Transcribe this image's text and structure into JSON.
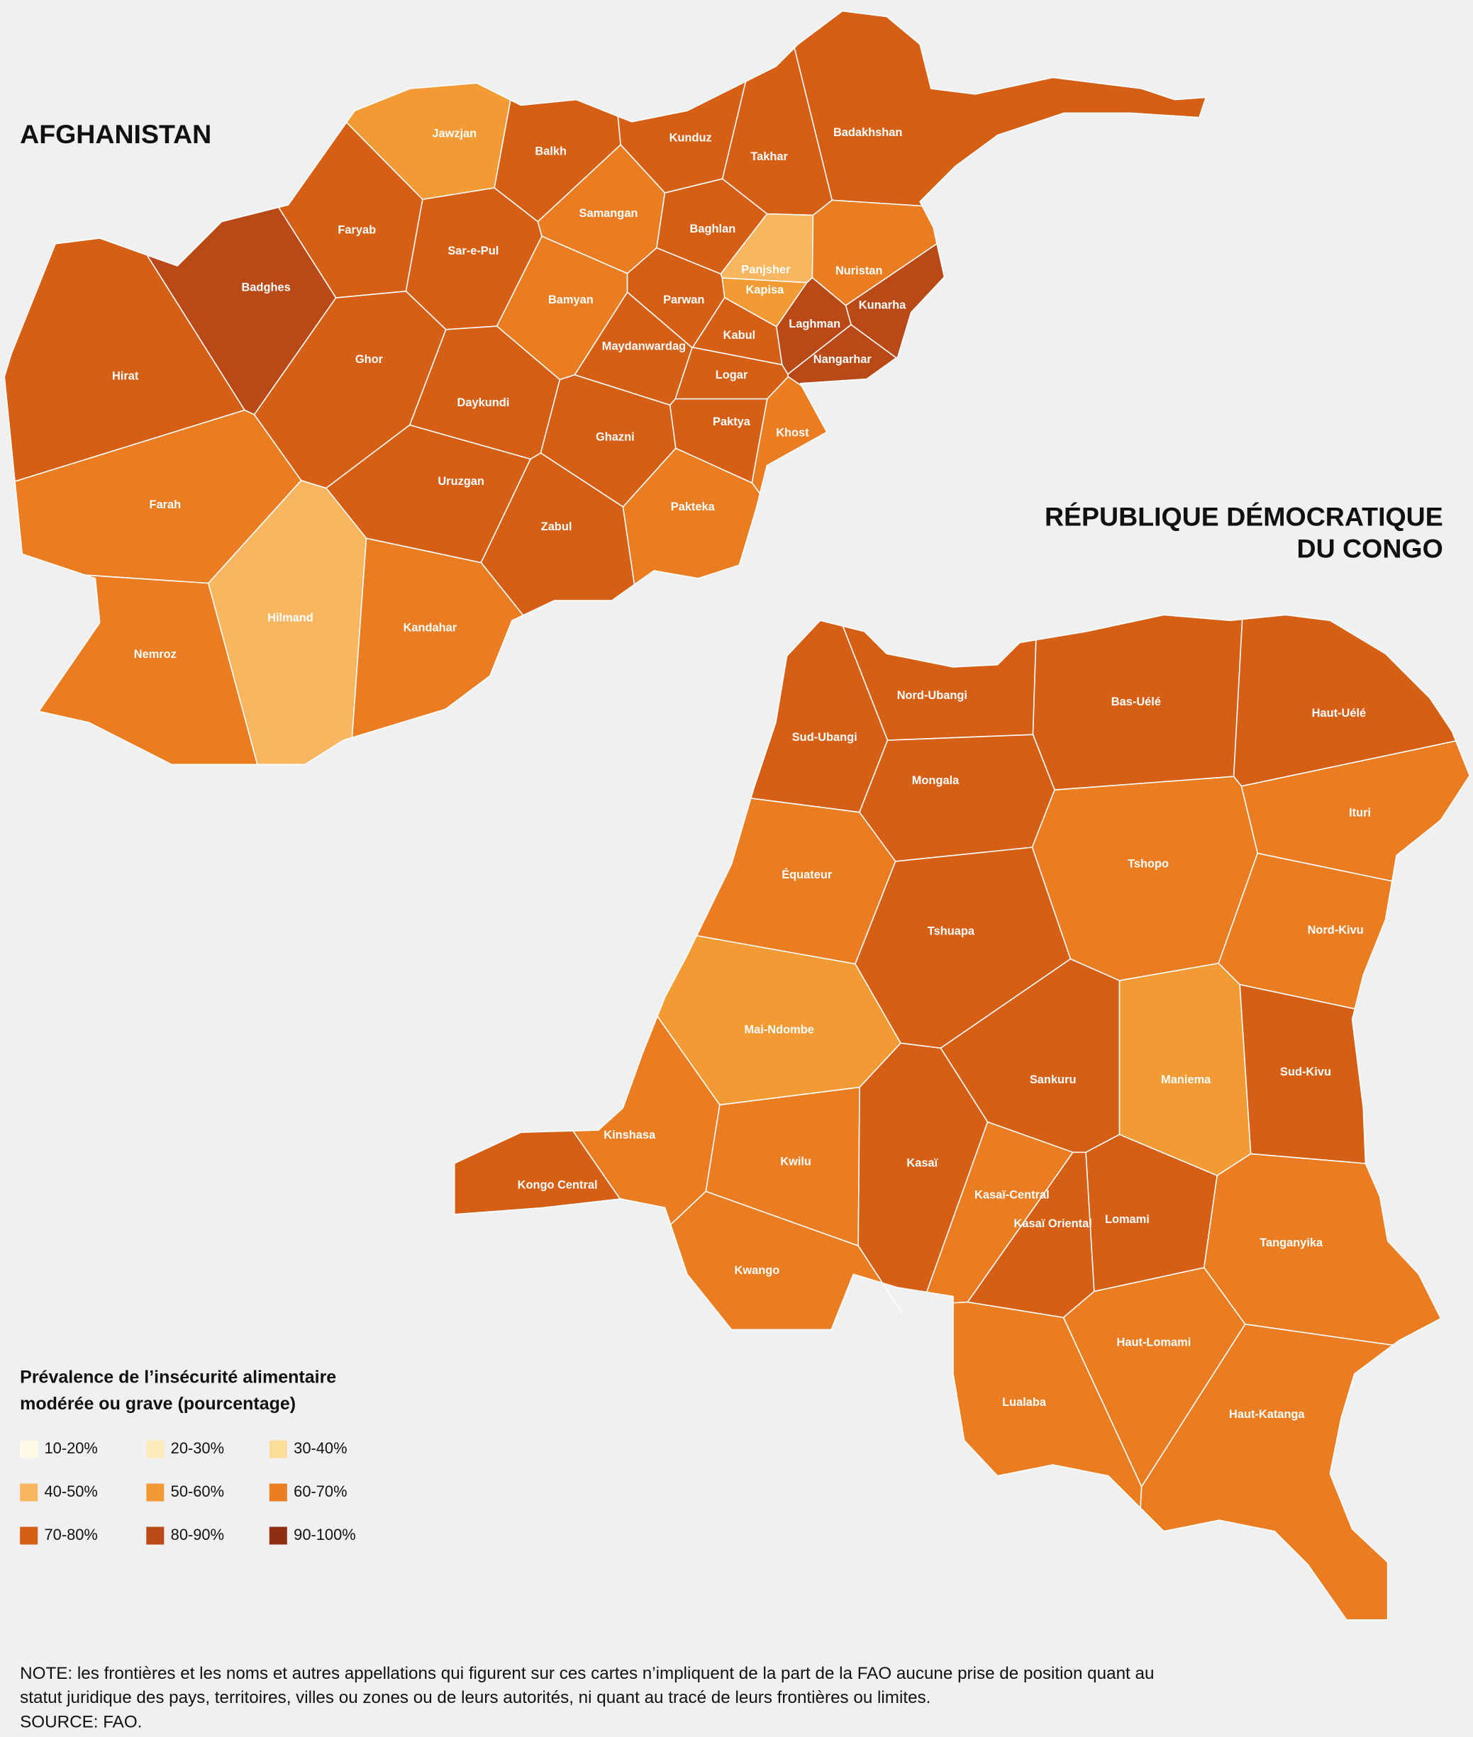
{
  "maps": [
    {
      "title_lines": [
        "AFGHANISTAN"
      ],
      "regions": [
        {
          "name": "Jawzjan",
          "color": "#f29a33"
        },
        {
          "name": "Balkh",
          "color": "#d65f16"
        },
        {
          "name": "Kunduz",
          "color": "#d65f16"
        },
        {
          "name": "Takhar",
          "color": "#d65f16"
        },
        {
          "name": "Badakhshan",
          "color": "#d65f16"
        },
        {
          "name": "Faryab",
          "color": "#d65f16"
        },
        {
          "name": "Sar-e-Pul",
          "color": "#d65f16"
        },
        {
          "name": "Samangan",
          "color": "#ea7d22"
        },
        {
          "name": "Baghlan",
          "color": "#d65f16"
        },
        {
          "name": "Panjsher",
          "color": "#f8b660"
        },
        {
          "name": "Nuristan",
          "color": "#ea7d22"
        },
        {
          "name": "Kapisa",
          "color": "#f29a33"
        },
        {
          "name": "Kunarha",
          "color": "#b94a17"
        },
        {
          "name": "Laghman",
          "color": "#b94a17"
        },
        {
          "name": "Nangarhar",
          "color": "#b94a17"
        },
        {
          "name": "Badghes",
          "color": "#b94a17"
        },
        {
          "name": "Hirat",
          "color": "#d65f16"
        },
        {
          "name": "Ghor",
          "color": "#d65f16"
        },
        {
          "name": "Bamyan",
          "color": "#ea7d22"
        },
        {
          "name": "Parwan",
          "color": "#d65f16"
        },
        {
          "name": "Kabul",
          "color": "#d65f16"
        },
        {
          "name": "Maydanwardag",
          "color": "#d65f16"
        },
        {
          "name": "Logar",
          "color": "#d65f16"
        },
        {
          "name": "Daykundi",
          "color": "#d65f16"
        },
        {
          "name": "Ghazni",
          "color": "#d65f16"
        },
        {
          "name": "Paktya",
          "color": "#d65f16"
        },
        {
          "name": "Khost",
          "color": "#ea7d22"
        },
        {
          "name": "Uruzgan",
          "color": "#d65f16"
        },
        {
          "name": "Zabul",
          "color": "#d65f16"
        },
        {
          "name": "Pakteka",
          "color": "#ea7d22"
        },
        {
          "name": "Farah",
          "color": "#ea7d22"
        },
        {
          "name": "Nemroz",
          "color": "#ea7d22"
        },
        {
          "name": "Hilmand",
          "color": "#f8b660"
        },
        {
          "name": "Kandahar",
          "color": "#ea7d22"
        }
      ]
    },
    {
      "title_lines": [
        "RÉPUBLIQUE DÉMOCRATIQUE",
        "DU CONGO"
      ],
      "regions": [
        {
          "name": "Nord-Ubangi",
          "color": "#d65f16"
        },
        {
          "name": "Sud-Ubangi",
          "color": "#d65f16"
        },
        {
          "name": "Bas-Uélé",
          "color": "#d65f16"
        },
        {
          "name": "Haut-Uélé",
          "color": "#d65f16"
        },
        {
          "name": "Mongala",
          "color": "#d65f16"
        },
        {
          "name": "Ituri",
          "color": "#ea7d22"
        },
        {
          "name": "Équateur",
          "color": "#ea7d22"
        },
        {
          "name": "Tshopo",
          "color": "#ea7d22"
        },
        {
          "name": "Nord-Kivu",
          "color": "#ea7d22"
        },
        {
          "name": "Tshuapa",
          "color": "#d65f16"
        },
        {
          "name": "Mai-Ndombe",
          "color": "#f29a33"
        },
        {
          "name": "Maniema",
          "color": "#f29a33"
        },
        {
          "name": "Sud-Kivu",
          "color": "#d65f16"
        },
        {
          "name": "Sankuru",
          "color": "#d65f16"
        },
        {
          "name": "Kinshasa",
          "color": "#ea7d22"
        },
        {
          "name": "Kongo Central",
          "color": "#d65f16"
        },
        {
          "name": "Kwilu",
          "color": "#ea7d22"
        },
        {
          "name": "Kasaï",
          "color": "#d65f16"
        },
        {
          "name": "Kasaï-Central",
          "color": "#ea7d22"
        },
        {
          "name": "Kasaï Oriental",
          "color": "#d65f16"
        },
        {
          "name": "Lomami",
          "color": "#d65f16"
        },
        {
          "name": "Tanganyika",
          "color": "#ea7d22"
        },
        {
          "name": "Kwango",
          "color": "#ea7d22"
        },
        {
          "name": "Haut-Lomami",
          "color": "#ea7d22"
        },
        {
          "name": "Lualaba",
          "color": "#ea7d22"
        },
        {
          "name": "Haut-Katanga",
          "color": "#ea7d22"
        }
      ]
    }
  ],
  "legend": {
    "title_lines": [
      "Prévalence de l’insécurité alimentaire",
      "modérée ou grave (pourcentage)"
    ],
    "items": [
      {
        "label": "10-20%",
        "color": "#fffbe6"
      },
      {
        "label": "20-30%",
        "color": "#fcebb8"
      },
      {
        "label": "30-40%",
        "color": "#fbdc98"
      },
      {
        "label": "40-50%",
        "color": "#f8b660"
      },
      {
        "label": "50-60%",
        "color": "#f29a33"
      },
      {
        "label": "60-70%",
        "color": "#ea7d22"
      },
      {
        "label": "70-80%",
        "color": "#d65f16"
      },
      {
        "label": "80-90%",
        "color": "#b94a17"
      },
      {
        "label": "90-100%",
        "color": "#8f2f12"
      }
    ]
  },
  "note_lines": [
    "NOTE: les frontières et les noms et autres appellations qui figurent sur ces cartes n’impliquent de la part de la FAO aucune prise de position quant au",
    "statut juridique des pays, territoires, villes ou zones ou de leurs autorités, ni quant au tracé de leurs frontières ou limites.",
    "SOURCE: FAO."
  ]
}
